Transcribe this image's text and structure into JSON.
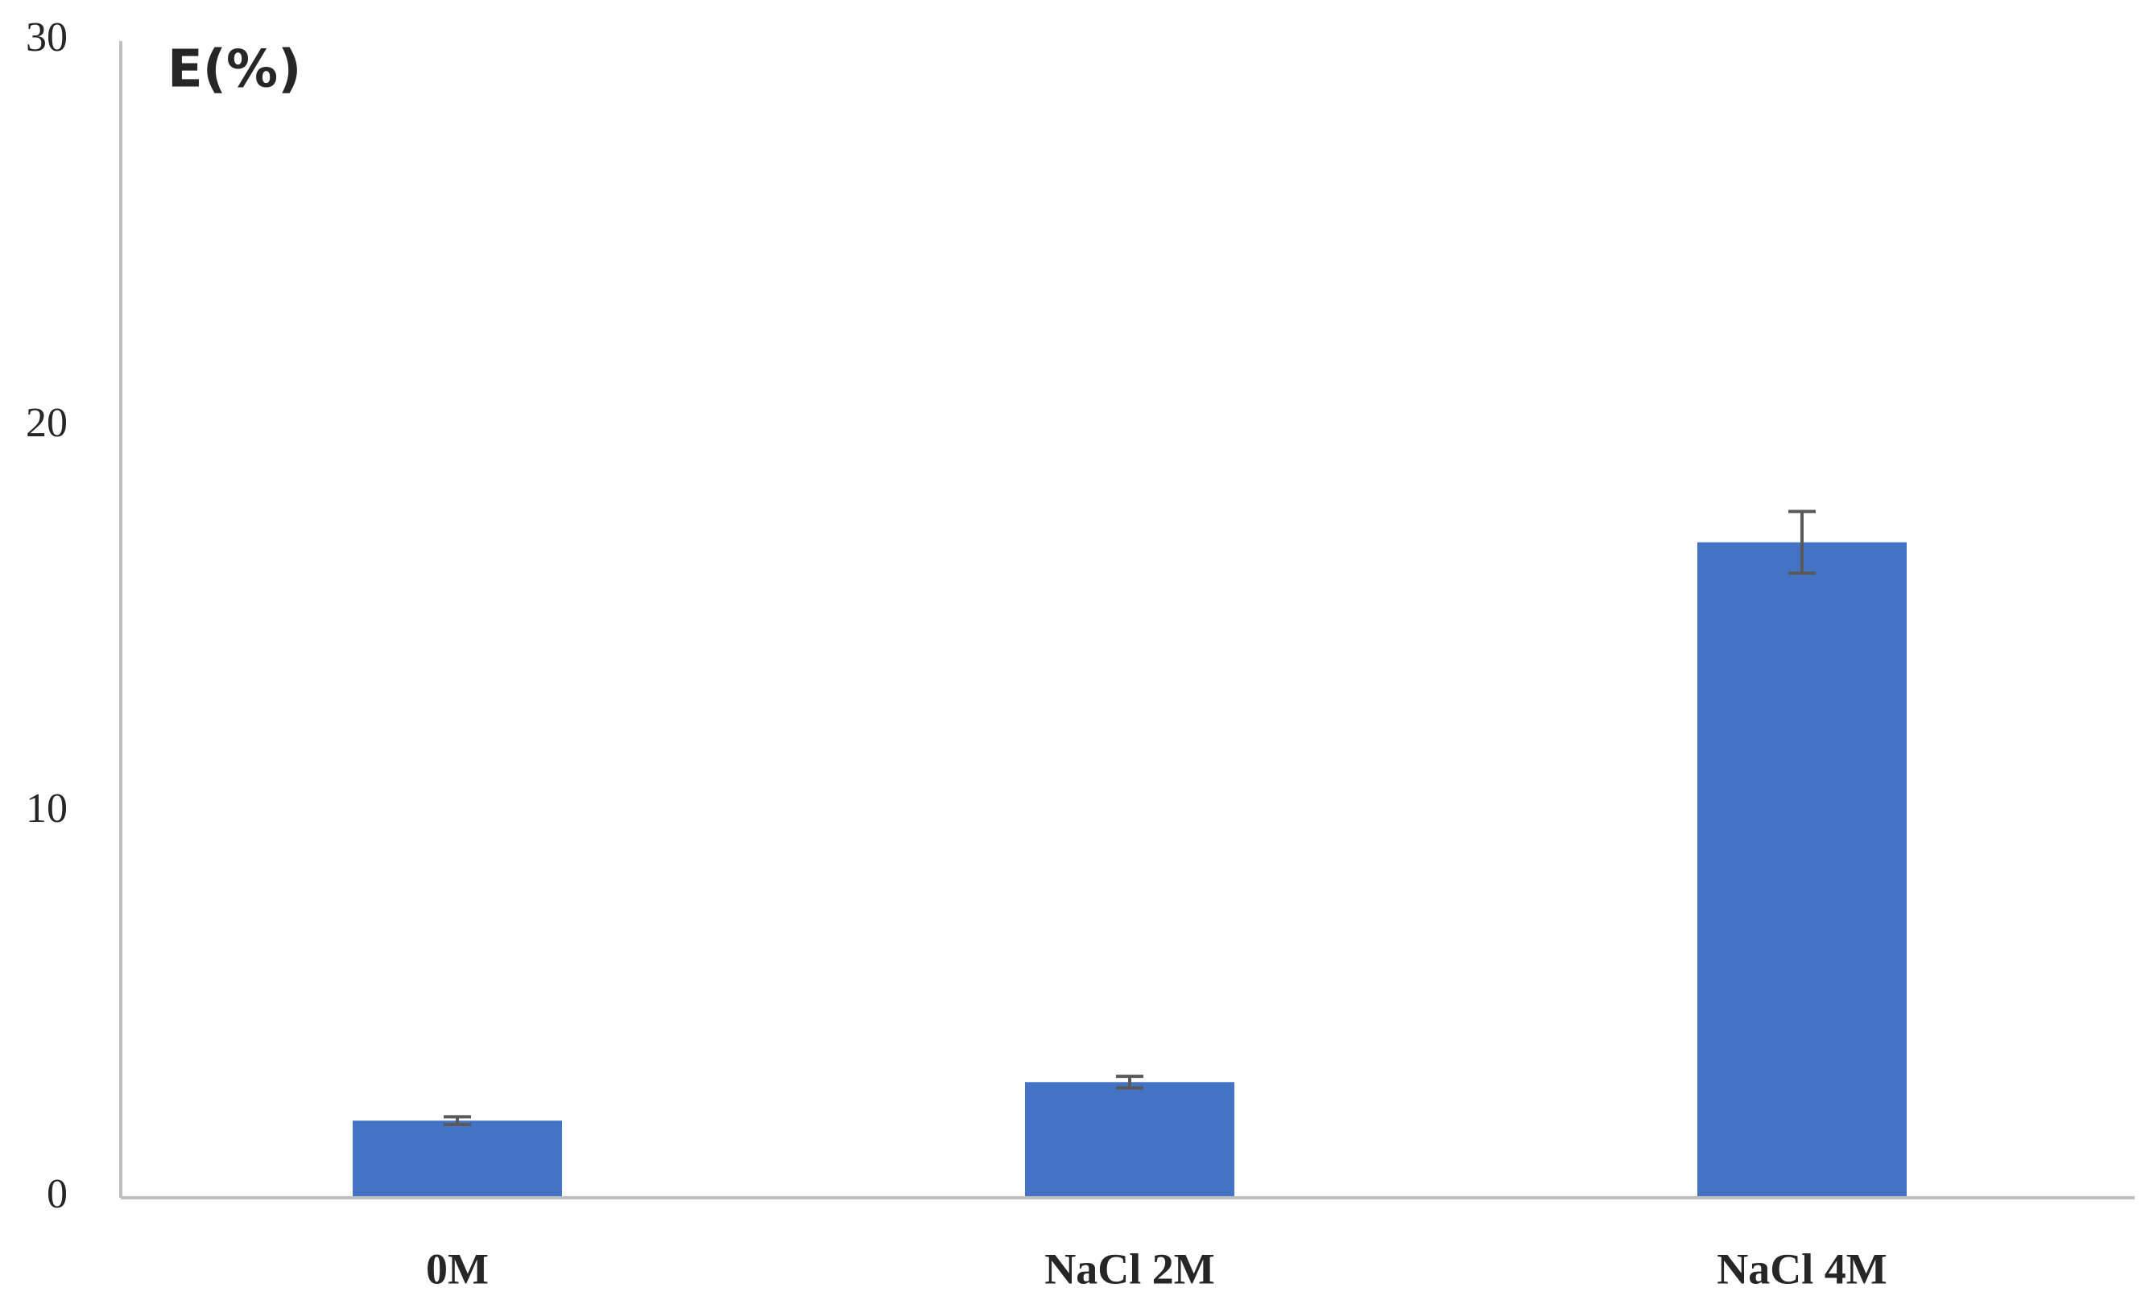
{
  "chart_data": {
    "type": "bar",
    "ylabel": "E(%)",
    "categories": [
      "0M",
      "NaCl 2M",
      "NaCl 4M"
    ],
    "values": [
      2.0,
      3.0,
      17.0
    ],
    "errors": [
      0.1,
      0.15,
      0.8
    ],
    "color": "#4472c4",
    "error_color": "#595959",
    "ylim": [
      0,
      30
    ],
    "yticks": [
      0,
      10,
      20,
      30
    ],
    "grid": false
  }
}
